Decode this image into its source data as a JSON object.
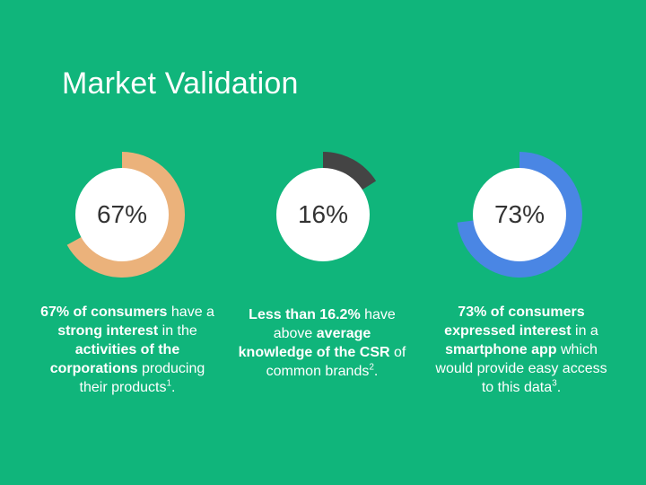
{
  "title": "Market Validation",
  "colors": {
    "background": "#10b57b",
    "ring_1": "#ebb27b",
    "ring_2": "#444444",
    "ring_3": "#4a86e4",
    "center": "#ffffff"
  },
  "chart_data": [
    {
      "type": "pie",
      "label": "67%",
      "values": [
        67,
        33
      ],
      "color": "#ebb27b"
    },
    {
      "type": "pie",
      "label": "16%",
      "values": [
        16,
        84
      ],
      "color": "#444444"
    },
    {
      "type": "pie",
      "label": "73%",
      "values": [
        73,
        27
      ],
      "color": "#4a86e4"
    }
  ],
  "captions": [
    {
      "parts": [
        {
          "text": "67% of consumers",
          "bold": true
        },
        {
          "text": " have a ",
          "bold": false
        },
        {
          "text": "strong interest",
          "bold": true
        },
        {
          "text": " in the ",
          "bold": false
        },
        {
          "text": "activities of the corporations",
          "bold": true
        },
        {
          "text": " producing their products",
          "bold": false
        }
      ],
      "footnote": "1",
      "end": "."
    },
    {
      "parts": [
        {
          "text": "Less than 16.2%",
          "bold": true
        },
        {
          "text": " have above ",
          "bold": false
        },
        {
          "text": "average knowledge of the CSR",
          "bold": true
        },
        {
          "text": " of common brands",
          "bold": false
        }
      ],
      "footnote": "2",
      "end": "."
    },
    {
      "parts": [
        {
          "text": "73% of consumers expressed interest",
          "bold": true
        },
        {
          "text": " in a ",
          "bold": false
        },
        {
          "text": "smartphone app",
          "bold": true
        },
        {
          "text": " which would provide easy access to this data",
          "bold": false
        }
      ],
      "footnote": "3",
      "end": "."
    }
  ]
}
